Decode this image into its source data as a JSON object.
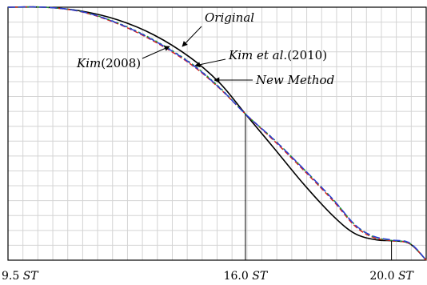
{
  "chart_data": {
    "type": "line",
    "title": "",
    "xlabel": "",
    "ylabel": "",
    "xlim": [
      9.5,
      20.95
    ],
    "ylim": [
      0,
      1
    ],
    "grid": true,
    "x_ticks": [
      {
        "value": 9.5,
        "num": "9.5",
        "unit": "ST"
      },
      {
        "value": 16.0,
        "num": "16.0",
        "unit": "ST"
      },
      {
        "value": 20.0,
        "num": "20.0",
        "unit": "ST"
      }
    ],
    "vertical_markers": [
      16.0,
      20.0
    ],
    "series": [
      {
        "name": "Original",
        "color": "#000000",
        "dash": "",
        "points": [
          [
            9.5,
            1.0
          ],
          [
            10.5,
            1.0
          ],
          [
            11.5,
            0.985
          ],
          [
            12.5,
            0.95
          ],
          [
            13.5,
            0.89
          ],
          [
            14.5,
            0.8
          ],
          [
            15.3,
            0.7
          ],
          [
            16.0,
            0.578
          ],
          [
            16.8,
            0.44
          ],
          [
            17.6,
            0.3
          ],
          [
            18.4,
            0.175
          ],
          [
            19.0,
            0.105
          ],
          [
            19.6,
            0.08
          ],
          [
            20.0,
            0.077
          ],
          [
            20.5,
            0.065
          ],
          [
            20.95,
            0.0
          ]
        ]
      },
      {
        "name": "Kim(2008)",
        "color": "#d81b1b",
        "dash": "6,3",
        "points": [
          [
            9.5,
            1.0
          ],
          [
            10.5,
            1.0
          ],
          [
            11.5,
            0.982
          ],
          [
            12.5,
            0.935
          ],
          [
            13.5,
            0.865
          ],
          [
            14.5,
            0.775
          ],
          [
            15.3,
            0.678
          ],
          [
            16.0,
            0.578
          ],
          [
            16.8,
            0.47
          ],
          [
            17.6,
            0.355
          ],
          [
            18.4,
            0.235
          ],
          [
            19.0,
            0.135
          ],
          [
            19.5,
            0.09
          ],
          [
            20.0,
            0.077
          ],
          [
            20.5,
            0.065
          ],
          [
            20.95,
            0.0
          ]
        ]
      },
      {
        "name": "Kim et al.(2010)",
        "color": "#1a9a3a",
        "dash": "3,3",
        "points": [
          [
            9.5,
            1.0
          ],
          [
            10.5,
            1.0
          ],
          [
            11.5,
            0.983
          ],
          [
            12.5,
            0.938
          ],
          [
            13.5,
            0.87
          ],
          [
            14.5,
            0.78
          ],
          [
            15.3,
            0.682
          ],
          [
            16.0,
            0.578
          ],
          [
            16.8,
            0.475
          ],
          [
            17.6,
            0.36
          ],
          [
            18.4,
            0.24
          ],
          [
            19.0,
            0.14
          ],
          [
            19.5,
            0.093
          ],
          [
            20.0,
            0.078
          ],
          [
            20.5,
            0.066
          ],
          [
            20.95,
            0.0
          ]
        ]
      },
      {
        "name": "New Method",
        "color": "#2a3fd6",
        "dash": "9,4",
        "points": [
          [
            9.5,
            1.0
          ],
          [
            10.5,
            1.0
          ],
          [
            11.5,
            0.983
          ],
          [
            12.5,
            0.937
          ],
          [
            13.5,
            0.868
          ],
          [
            14.5,
            0.778
          ],
          [
            15.3,
            0.68
          ],
          [
            16.0,
            0.578
          ],
          [
            16.8,
            0.474
          ],
          [
            17.6,
            0.36
          ],
          [
            18.4,
            0.24
          ],
          [
            19.0,
            0.14
          ],
          [
            19.5,
            0.095
          ],
          [
            20.0,
            0.08
          ],
          [
            20.5,
            0.068
          ],
          [
            20.95,
            0.0
          ]
        ]
      }
    ],
    "annotations": [
      {
        "name": "original-annotation",
        "parts": [
          {
            "text": "Original",
            "italic": true
          }
        ]
      },
      {
        "name": "kim2008-annotation",
        "parts": [
          {
            "text": "Kim",
            "italic": true
          },
          {
            "text": "(2008)",
            "italic": false
          }
        ]
      },
      {
        "name": "kim2010-annotation",
        "parts": [
          {
            "text": "Kim et al.",
            "italic": true
          },
          {
            "text": "(2010)",
            "italic": false
          }
        ]
      },
      {
        "name": "new-method-annotation",
        "parts": [
          {
            "text": "New Method",
            "italic": true
          }
        ]
      }
    ]
  }
}
